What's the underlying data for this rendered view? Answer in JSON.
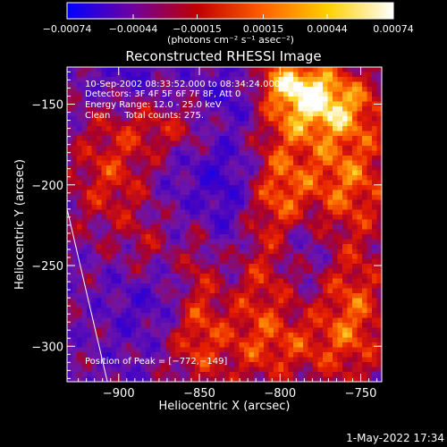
{
  "chart_data": {
    "type": "heatmap",
    "title": "Reconstructed RHESSI Image",
    "xlabel": "Heliocentric X (arcsec)",
    "ylabel": "Heliocentric Y (arcsec)",
    "xlim": [
      -932,
      -737
    ],
    "ylim": [
      -322,
      -127
    ],
    "x_ticks": [
      -900,
      -850,
      -800,
      -750
    ],
    "x_tick_labels": [
      "−900",
      "−850",
      "−800",
      "−750"
    ],
    "y_ticks": [
      -150,
      -200,
      -250,
      -300
    ],
    "y_tick_labels": [
      "−150",
      "−200",
      "−250",
      "−300"
    ],
    "colorbar": {
      "ticks": [
        -0.00074,
        -0.00044,
        -0.00015,
        0.00015,
        0.00044,
        0.00074
      ],
      "tick_labels": [
        "−0.00074",
        "−0.00044",
        "−0.00015",
        "0.00015",
        "0.00044",
        "0.00074"
      ],
      "units_label": "(photons cm⁻² s⁻¹ asec⁻²)",
      "range": [
        -0.00074,
        0.00074
      ],
      "colors": [
        "#0000ff",
        "#7000a0",
        "#c00000",
        "#ff6000",
        "#ffd000",
        "#ffffff"
      ]
    },
    "annotations": [
      "10-Sep-2002 08:33:52.000 to 08:34:24.000",
      "Detectors: 3F 4F 5F 6F 7F 8F, Att 0",
      "Energy Range: 12.0 - 25.0 keV",
      "Clean     Total counts: 275.",
      "Position of Peak = [−772,−149]"
    ],
    "limb_line": {
      "x": [
        -932,
        -907
      ],
      "y": [
        -215,
        -322
      ]
    },
    "peak": {
      "x": -772,
      "y": -149
    },
    "hot_regions": [
      {
        "x": -775,
        "y": -150,
        "sx": 25,
        "sy": 15,
        "amp": 0.0007
      },
      {
        "x": -795,
        "y": -135,
        "sx": 18,
        "sy": 10,
        "amp": 0.00045
      },
      {
        "x": -760,
        "y": -195,
        "sx": 22,
        "sy": 25,
        "amp": 0.0005
      },
      {
        "x": -800,
        "y": -205,
        "sx": 12,
        "sy": 30,
        "amp": 0.0004
      },
      {
        "x": -905,
        "y": -195,
        "sx": 18,
        "sy": 25,
        "amp": 0.00035
      },
      {
        "x": -865,
        "y": -165,
        "sx": 25,
        "sy": 12,
        "amp": 0.0003
      },
      {
        "x": -850,
        "y": -255,
        "sx": 10,
        "sy": 35,
        "amp": 0.0004
      },
      {
        "x": -860,
        "y": -300,
        "sx": 25,
        "sy": 20,
        "amp": 0.00035
      },
      {
        "x": -815,
        "y": -260,
        "sx": 15,
        "sy": 40,
        "amp": 0.00035
      },
      {
        "x": -755,
        "y": -280,
        "sx": 15,
        "sy": 30,
        "amp": 0.00045
      },
      {
        "x": -880,
        "y": -240,
        "sx": 12,
        "sy": 15,
        "amp": 0.00025
      },
      {
        "x": -790,
        "y": -300,
        "sx": 20,
        "sy": 15,
        "amp": 0.0003
      }
    ],
    "cold_regions": [
      {
        "x": -840,
        "y": -210,
        "sx": 20,
        "sy": 40,
        "amp": 0.00035
      },
      {
        "x": -880,
        "y": -290,
        "sx": 20,
        "sy": 30,
        "amp": 0.0003
      },
      {
        "x": -895,
        "y": -130,
        "sx": 15,
        "sy": 12,
        "amp": 0.0002
      },
      {
        "x": -825,
        "y": -145,
        "sx": 15,
        "sy": 15,
        "amp": 0.00025
      },
      {
        "x": -790,
        "y": -235,
        "sx": 15,
        "sy": 15,
        "amp": 0.00025
      }
    ]
  },
  "footer": {
    "timestamp": "1-May-2022 17:34"
  }
}
